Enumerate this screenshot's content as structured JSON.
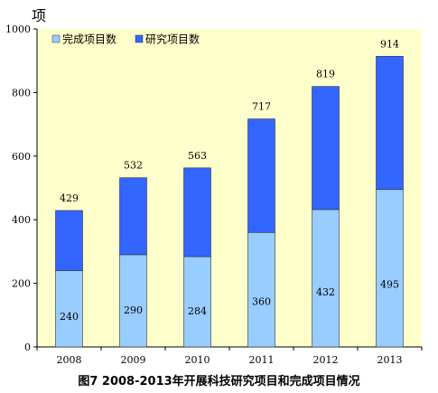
{
  "caption": "图7   2008-2013年开展科技研究项目和完成项目情况",
  "chart_data": {
    "type": "bar",
    "stacked": true,
    "unit": "项",
    "categories": [
      "2008",
      "2009",
      "2010",
      "2011",
      "2012",
      "2013"
    ],
    "series": [
      {
        "name": "完成项目数",
        "values": [
          240,
          290,
          284,
          360,
          432,
          495
        ],
        "color": "#99ccff"
      },
      {
        "name": "研究项目数",
        "values": [
          189,
          242,
          279,
          357,
          387,
          419
        ],
        "color": "#3366ff"
      }
    ],
    "totals": [
      429,
      532,
      563,
      717,
      819,
      914
    ],
    "ylim": [
      0,
      1000
    ],
    "yticks": [
      0,
      200,
      400,
      600,
      800,
      1000
    ],
    "plot_background": "#ffffcc",
    "legend_position": "top-left",
    "grid": false
  }
}
